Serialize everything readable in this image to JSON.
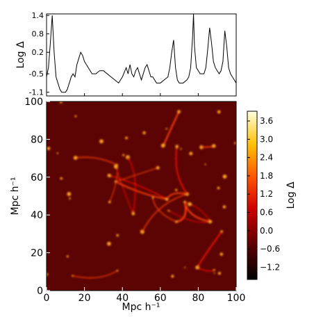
{
  "chart_data": [
    {
      "type": "line",
      "ylabel": "Log Δ",
      "x": [
        0,
        1,
        2,
        3,
        4,
        5,
        6,
        7,
        8,
        9,
        10,
        11,
        12,
        13,
        14,
        15,
        16,
        17,
        18,
        19,
        20,
        21,
        22,
        24,
        26,
        28,
        30,
        32,
        34,
        36,
        38,
        40,
        42,
        43,
        44,
        45,
        46,
        47,
        48,
        49,
        50,
        51,
        52,
        53,
        54,
        55,
        56,
        58,
        60,
        62,
        64,
        65,
        66,
        67,
        68,
        69,
        70,
        72,
        74,
        75,
        76,
        77,
        77.5,
        78,
        79,
        80,
        81,
        82,
        83,
        84,
        85,
        86,
        87,
        88,
        89,
        90,
        91,
        92,
        93,
        94,
        95,
        96,
        97,
        98,
        99,
        100
      ],
      "series": [
        {
          "name": "Log Δ",
          "color": "#000000",
          "values": [
            -0.6,
            -0.3,
            0.5,
            1.4,
            0.2,
            -0.6,
            -0.8,
            -1.0,
            -1.1,
            -1.1,
            -1.1,
            -1.0,
            -0.8,
            -0.6,
            -0.5,
            -0.6,
            -0.2,
            0.0,
            0.2,
            0.1,
            -0.1,
            -0.2,
            -0.3,
            -0.5,
            -0.5,
            -0.4,
            -0.4,
            -0.5,
            -0.6,
            -0.7,
            -0.8,
            -0.6,
            -0.3,
            -0.5,
            -0.2,
            -0.5,
            -0.6,
            -0.4,
            -0.3,
            -0.5,
            -0.7,
            -0.5,
            -0.3,
            -0.2,
            -0.4,
            -0.6,
            -0.6,
            -0.8,
            -0.8,
            -0.7,
            -0.6,
            -0.3,
            0.2,
            0.6,
            -0.3,
            -0.7,
            -0.8,
            -0.8,
            -0.7,
            -0.6,
            -0.3,
            0.7,
            1.45,
            0.4,
            -0.3,
            -0.4,
            -0.5,
            -0.5,
            -0.5,
            -0.3,
            0.3,
            1.0,
            0.5,
            -0.1,
            -0.3,
            -0.4,
            -0.5,
            -0.4,
            -0.1,
            0.9,
            0.4,
            -0.3,
            -0.5,
            -0.6,
            -0.7,
            -0.8
          ]
        }
      ],
      "xlim": [
        0,
        100
      ],
      "ylim": [
        -1.22,
        1.45
      ],
      "yticks": [
        1.4,
        0.8,
        0.2,
        -0.5,
        -1.1
      ]
    },
    {
      "type": "heatmap",
      "xlabel": "Mpc h⁻¹",
      "ylabel": "Mpc h⁻¹",
      "xlim": [
        0,
        100
      ],
      "ylim": [
        0,
        100
      ],
      "xticks": [
        0,
        20,
        40,
        60,
        80,
        100
      ],
      "yticks": [
        0,
        20,
        40,
        60,
        80,
        100
      ],
      "colorbar_label": "Log Δ",
      "clim": [
        -1.6,
        3.92
      ],
      "colorbar_ticks": [
        {
          "value": 3.6,
          "label": "3.6"
        },
        {
          "value": 3.0,
          "label": "3.0"
        },
        {
          "value": 2.4,
          "label": "2.4"
        },
        {
          "value": 1.8,
          "label": "1.8"
        },
        {
          "value": 1.2,
          "label": "1.2"
        },
        {
          "value": 0.6,
          "label": "0.6"
        },
        {
          "value": 0.0,
          "label": "0.0"
        },
        {
          "value": -0.6,
          "label": "−0.6"
        },
        {
          "value": -1.2,
          "label": "−1.2"
        }
      ]
    }
  ]
}
